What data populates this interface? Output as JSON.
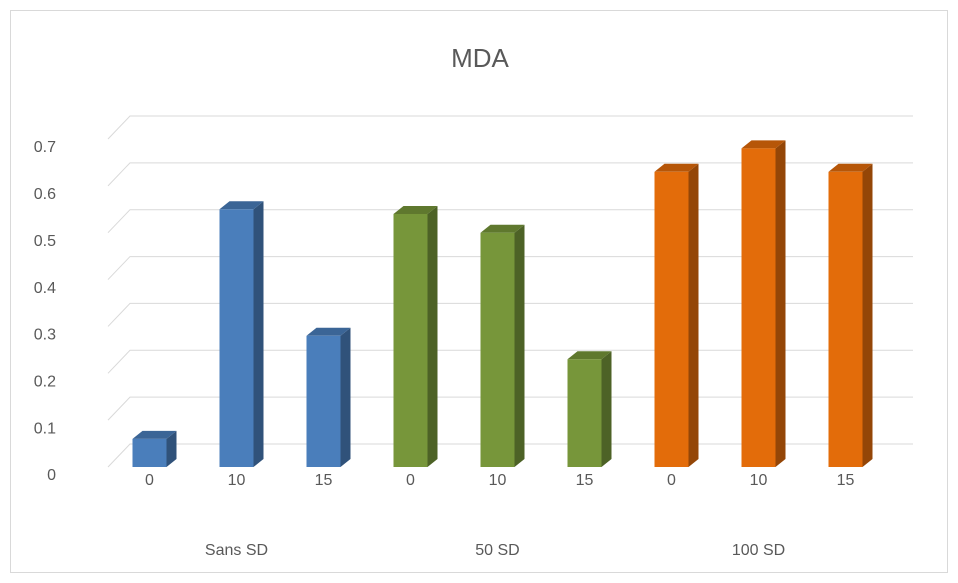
{
  "chart_data": {
    "type": "bar",
    "title": "MDA",
    "categories": [
      "0",
      "10",
      "15"
    ],
    "series": [
      {
        "name": "Sans SD",
        "color": "#4a7ebb",
        "values": [
          0.06,
          0.55,
          0.28
        ]
      },
      {
        "name": "50 SD",
        "color": "#77963a",
        "values": [
          0.54,
          0.5,
          0.23
        ]
      },
      {
        "name": "100 SD",
        "color": "#e36c0a",
        "values": [
          0.63,
          0.68,
          0.63
        ]
      }
    ],
    "ylim": [
      0,
      0.7
    ],
    "yticks": [
      0,
      0.1,
      0.2,
      0.3,
      0.4,
      0.5,
      0.6,
      0.7
    ],
    "grid": true
  }
}
